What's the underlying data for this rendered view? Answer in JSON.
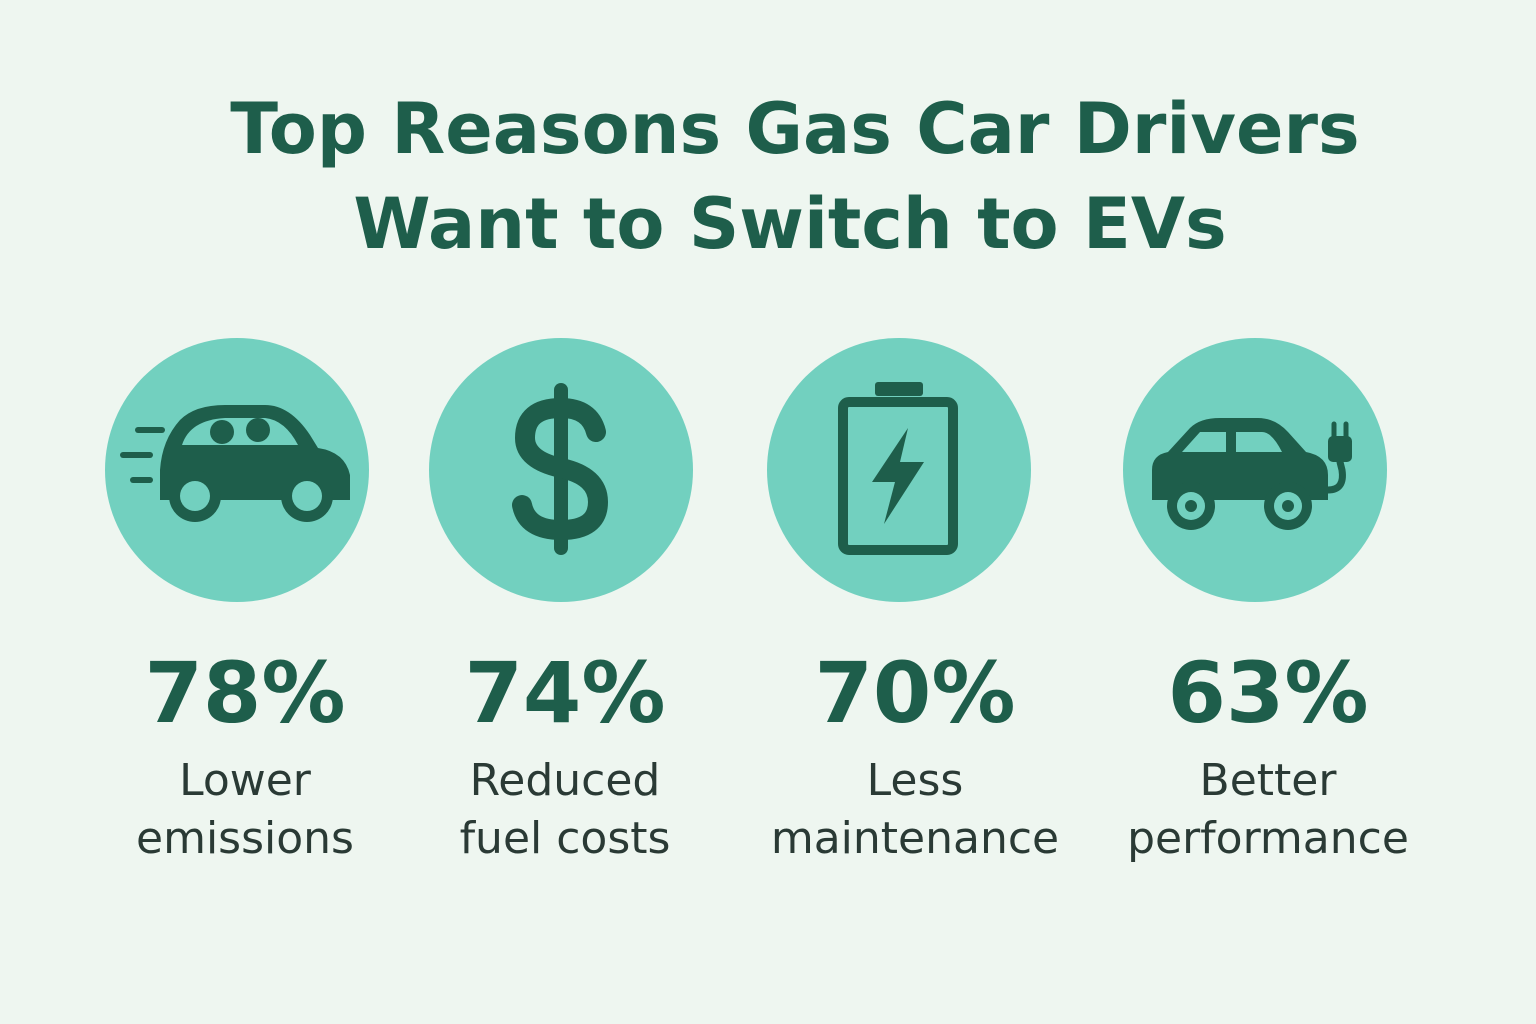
{
  "title": [
    "Top Reasons Gas Car Drivers",
    "Want to Switch to EVs"
  ],
  "items": [
    {
      "stat": "78%",
      "label": [
        "Lower",
        "emissions"
      ]
    },
    {
      "stat": "74%",
      "label": [
        "Reduced",
        "fuel costs"
      ]
    },
    {
      "stat": "70%",
      "label": [
        "Less",
        "maintenance"
      ]
    },
    {
      "stat": "63%",
      "label": [
        "Better",
        "performance"
      ]
    }
  ]
}
